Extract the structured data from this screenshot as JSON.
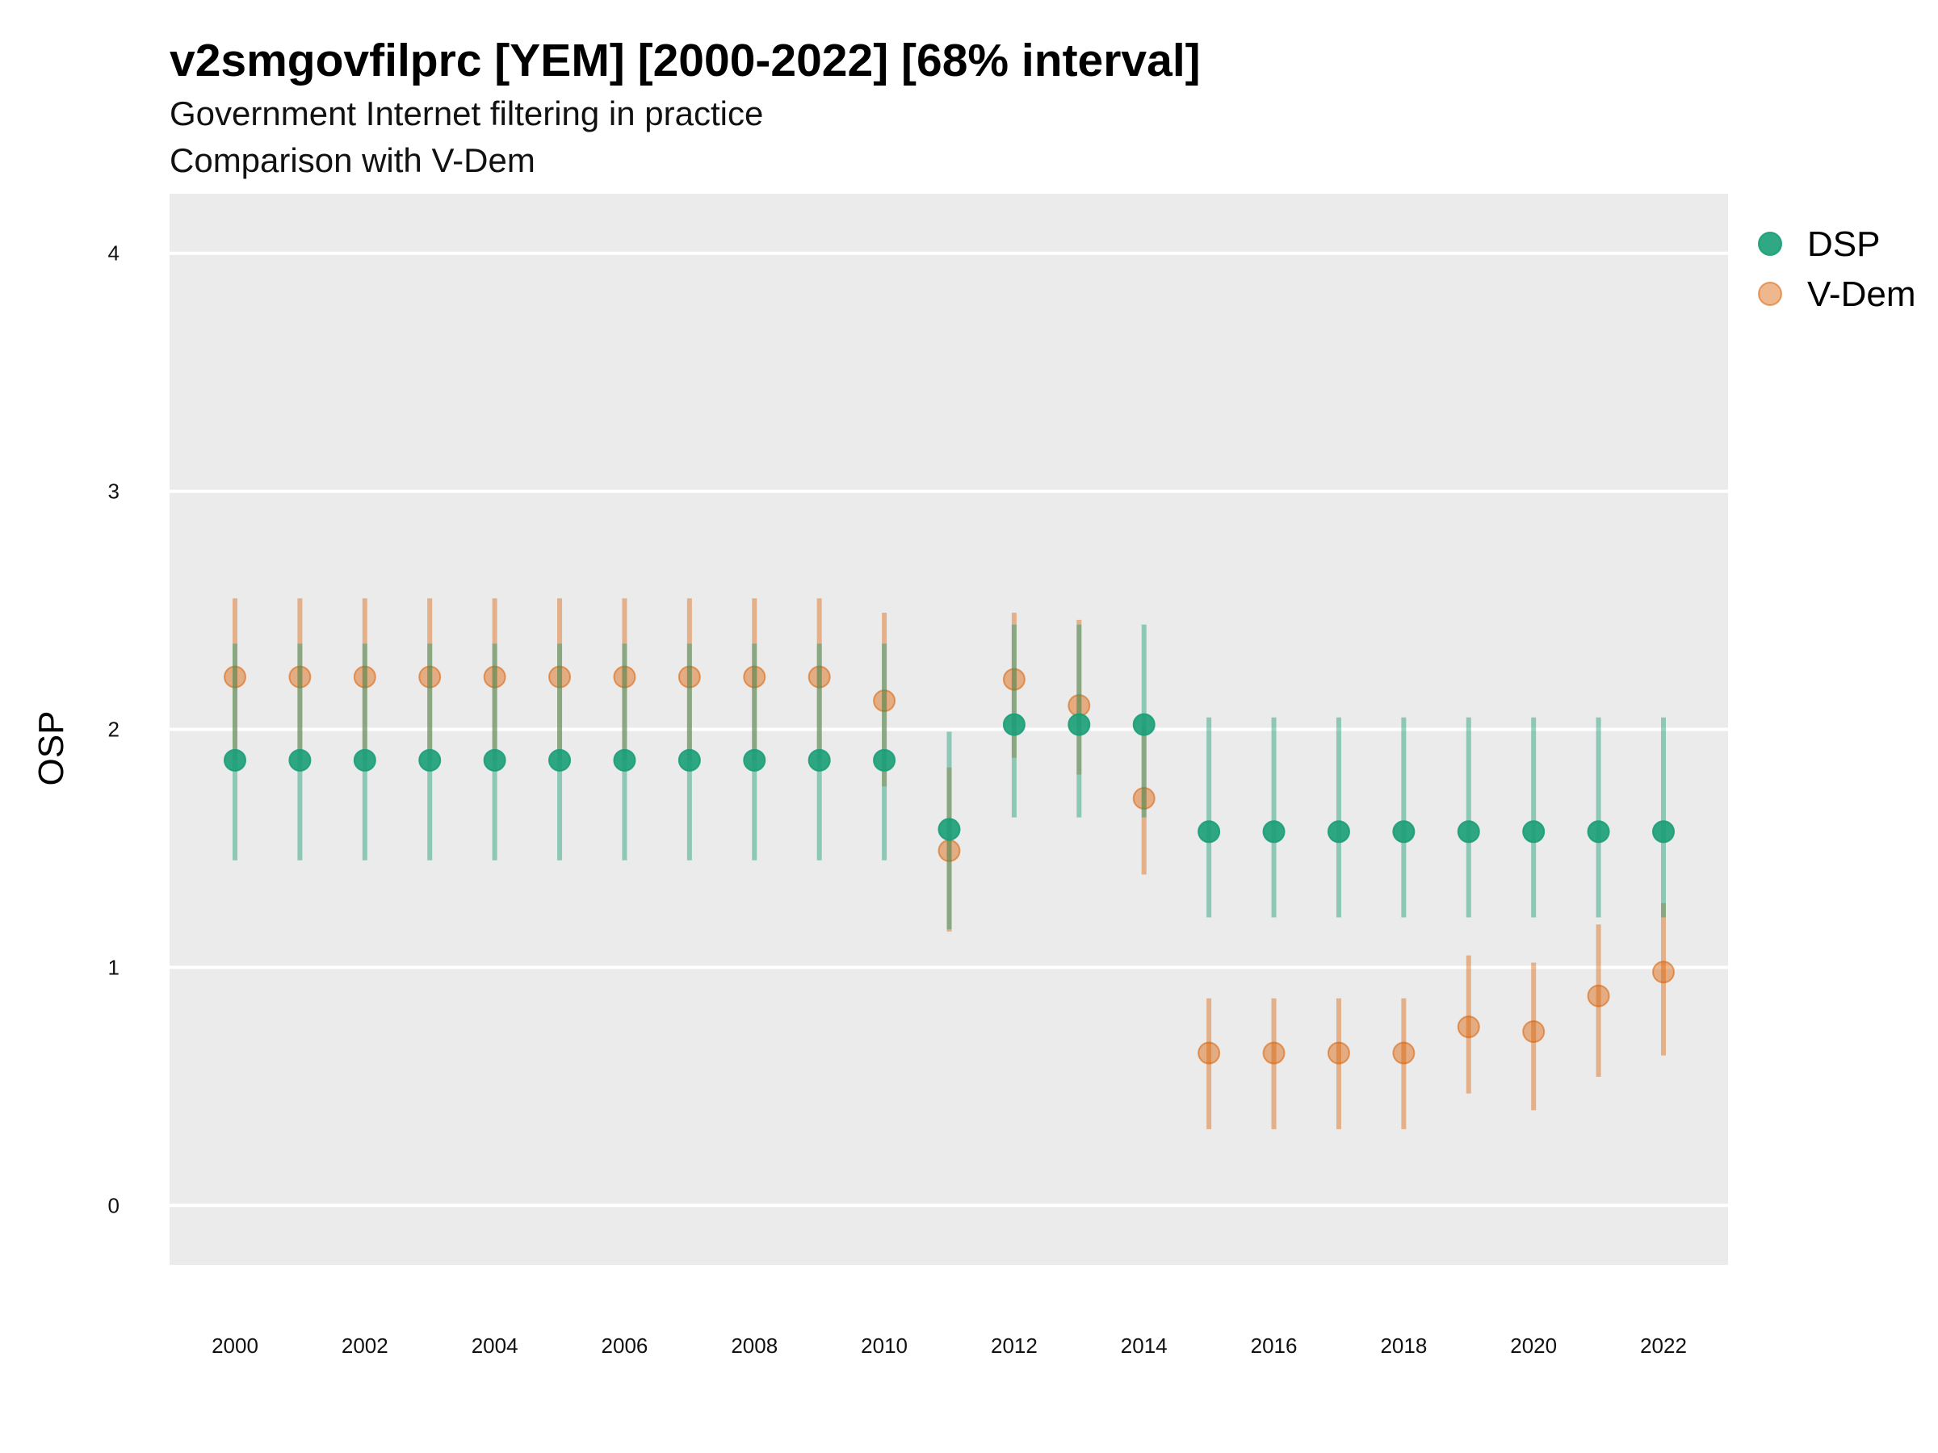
{
  "chart_data": {
    "type": "scatter",
    "title": "v2smgovfilprc [YEM] [2000-2022] [68% interval]",
    "subtitle": "Government Internet filtering in practice",
    "subtitle2": "Comparison with V-Dem",
    "ylabel": "OSP",
    "xlabel": "",
    "ylim": [
      -0.25,
      4.25
    ],
    "yticks": [
      0,
      1,
      2,
      3,
      4
    ],
    "xticks": [
      2000,
      2002,
      2004,
      2006,
      2008,
      2010,
      2012,
      2014,
      2016,
      2018,
      2020,
      2022
    ],
    "x": [
      2000,
      2001,
      2002,
      2003,
      2004,
      2005,
      2006,
      2007,
      2008,
      2009,
      2010,
      2011,
      2012,
      2013,
      2014,
      2015,
      2016,
      2017,
      2018,
      2019,
      2020,
      2021,
      2022
    ],
    "grid": true,
    "legend_position": "right",
    "series": [
      {
        "name": "DSP",
        "color": "#1b9e77",
        "values": [
          1.87,
          1.87,
          1.87,
          1.87,
          1.87,
          1.87,
          1.87,
          1.87,
          1.87,
          1.87,
          1.87,
          1.58,
          2.02,
          2.02,
          2.02,
          1.57,
          1.57,
          1.57,
          1.57,
          1.57,
          1.57,
          1.57,
          1.57
        ],
        "lower": [
          1.45,
          1.45,
          1.45,
          1.45,
          1.45,
          1.45,
          1.45,
          1.45,
          1.45,
          1.45,
          1.45,
          1.16,
          1.63,
          1.63,
          1.63,
          1.21,
          1.21,
          1.21,
          1.21,
          1.21,
          1.21,
          1.21,
          1.21
        ],
        "upper": [
          2.36,
          2.36,
          2.36,
          2.36,
          2.36,
          2.36,
          2.36,
          2.36,
          2.36,
          2.36,
          2.36,
          1.99,
          2.44,
          2.44,
          2.44,
          2.05,
          2.05,
          2.05,
          2.05,
          2.05,
          2.05,
          2.05,
          2.05
        ]
      },
      {
        "name": "V-Dem",
        "color": "#d95f02",
        "values": [
          2.22,
          2.22,
          2.22,
          2.22,
          2.22,
          2.22,
          2.22,
          2.22,
          2.22,
          2.22,
          2.12,
          1.49,
          2.21,
          2.1,
          1.71,
          0.64,
          0.64,
          0.64,
          0.64,
          0.75,
          0.73,
          0.88,
          0.98
        ],
        "lower": [
          1.87,
          1.87,
          1.87,
          1.87,
          1.87,
          1.87,
          1.87,
          1.87,
          1.87,
          1.87,
          1.76,
          1.15,
          1.88,
          1.81,
          1.39,
          0.32,
          0.32,
          0.32,
          0.32,
          0.47,
          0.4,
          0.54,
          0.63
        ],
        "upper": [
          2.55,
          2.55,
          2.55,
          2.55,
          2.55,
          2.55,
          2.55,
          2.55,
          2.55,
          2.55,
          2.49,
          1.84,
          2.49,
          2.46,
          2.01,
          0.87,
          0.87,
          0.87,
          0.87,
          1.05,
          1.02,
          1.18,
          1.27
        ]
      }
    ]
  }
}
